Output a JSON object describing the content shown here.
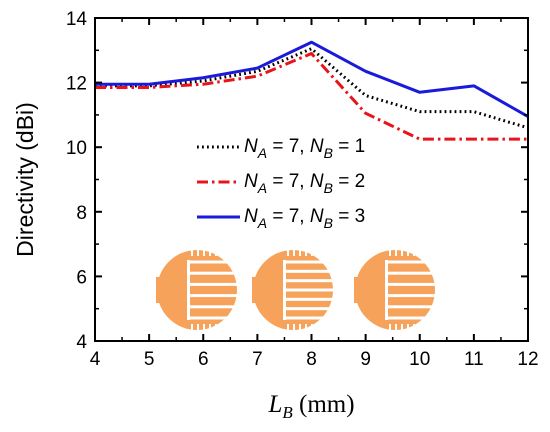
{
  "chart_data": {
    "type": "line",
    "title": "",
    "ylabel": "Directivity (dBi)",
    "xlabel": {
      "var": "L",
      "sub": "B",
      "unit": " (mm)"
    },
    "xlim": [
      4,
      12
    ],
    "ylim": [
      4,
      14
    ],
    "xticks": [
      4,
      5,
      6,
      7,
      8,
      9,
      10,
      11,
      12
    ],
    "yticks": [
      4,
      6,
      8,
      10,
      12,
      14
    ],
    "grid": false,
    "legend_position": "center-right",
    "x": [
      4,
      5,
      6,
      7,
      8,
      9,
      10,
      11,
      12
    ],
    "series": [
      {
        "name": "N_A = 7, N_B = 1",
        "label": {
          "a_val": "7",
          "b_val": "1"
        },
        "values": [
          11.9,
          11.9,
          12.05,
          12.35,
          13.05,
          11.6,
          11.1,
          11.1,
          10.6
        ],
        "color": "#000000",
        "style": "dotted"
      },
      {
        "name": "N_A = 7, N_B = 2",
        "label": {
          "a_val": "7",
          "b_val": "2"
        },
        "values": [
          11.85,
          11.85,
          11.95,
          12.2,
          12.9,
          11.05,
          10.25,
          10.25,
          10.25
        ],
        "color": "#e8141b",
        "style": "dashdot"
      },
      {
        "name": "N_A = 7, N_B = 3",
        "label": {
          "a_val": "7",
          "b_val": "3"
        },
        "values": [
          11.95,
          11.95,
          12.15,
          12.45,
          13.25,
          12.35,
          11.7,
          11.9,
          10.95
        ],
        "color": "#1a1adb",
        "style": "solid"
      }
    ],
    "legend_symbols": {
      "na": "N",
      "na_sub": "A",
      "nb": "N",
      "nb_sub": "B",
      "eq": " = ",
      "sep": ", "
    }
  },
  "colors": {
    "antenna": "#f7a25a",
    "axis": "#000000"
  },
  "antenna_icons": [
    {
      "name": "antenna-icon-nb1",
      "slot_rows": 6
    },
    {
      "name": "antenna-icon-nb2",
      "slot_rows": 7
    },
    {
      "name": "antenna-icon-nb3",
      "slot_rows": 6
    }
  ]
}
